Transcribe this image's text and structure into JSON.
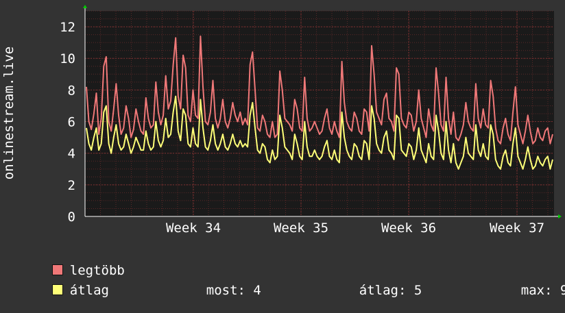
{
  "chart_data": {
    "type": "line",
    "ylabel": "onlinestream.live",
    "ylim": [
      0,
      13
    ],
    "y_ticks": [
      "0",
      "2",
      "4",
      "6",
      "8",
      "10",
      "12"
    ],
    "x_ticks": [
      "Week 34",
      "Week 35",
      "Week 36",
      "Week 37"
    ],
    "grid": true,
    "colors": {
      "background": "#333333",
      "plot": "#1a1a1a",
      "grid": "#5a2828",
      "max": "#f07878",
      "avg": "#ffff78"
    },
    "series": [
      {
        "name": "legtöbb",
        "color": "#f07878",
        "values": [
          8.2,
          6.0,
          5.5,
          6.5,
          7.8,
          5.2,
          6.2,
          9.5,
          10.1,
          6.0,
          5.4,
          6.8,
          8.4,
          6.4,
          5.2,
          5.6,
          7.0,
          6.2,
          5.0,
          5.5,
          6.8,
          6.0,
          5.4,
          5.2,
          7.5,
          6.2,
          5.6,
          5.8,
          8.5,
          6.6,
          5.8,
          6.4,
          8.9,
          6.8,
          7.3,
          9.6,
          11.3,
          7.6,
          6.8,
          10.2,
          9.4,
          6.4,
          6.0,
          8.0,
          6.4,
          6.2,
          11.4,
          8.2,
          6.0,
          5.8,
          6.6,
          8.6,
          6.2,
          5.6,
          6.2,
          7.4,
          6.0,
          5.6,
          6.2,
          7.2,
          6.4,
          6.0,
          6.6,
          5.8,
          6.2,
          5.8,
          9.6,
          10.4,
          8.0,
          5.6,
          5.4,
          6.4,
          6.0,
          5.2,
          5.0,
          6.0,
          5.0,
          5.2,
          9.2,
          8.0,
          6.2,
          6.0,
          5.8,
          5.4,
          7.4,
          6.8,
          5.6,
          5.4,
          8.8,
          6.2,
          5.4,
          5.6,
          6.0,
          5.6,
          5.2,
          5.4,
          6.2,
          6.8,
          5.6,
          5.2,
          6.0,
          5.4,
          5.0,
          9.8,
          7.2,
          6.0,
          5.6,
          5.4,
          6.6,
          6.2,
          5.4,
          5.2,
          6.8,
          6.6,
          5.4,
          10.8,
          9.0,
          6.6,
          6.2,
          5.8,
          7.4,
          7.8,
          6.2,
          6.0,
          5.4,
          9.4,
          9.0,
          6.2,
          5.8,
          5.6,
          6.6,
          6.4,
          5.4,
          6.0,
          8.0,
          6.2,
          5.6,
          5.0,
          6.8,
          5.8,
          5.4,
          9.4,
          7.8,
          5.8,
          5.4,
          8.8,
          6.2,
          5.2,
          6.6,
          5.0,
          4.8,
          5.2,
          5.8,
          7.2,
          6.0,
          5.6,
          5.4,
          8.4,
          6.2,
          5.6,
          6.8,
          5.8,
          5.6,
          8.6,
          7.6,
          5.6,
          4.8,
          4.6,
          5.6,
          6.2,
          5.2,
          4.8,
          6.6,
          8.2,
          5.8,
          5.2,
          4.6,
          5.4,
          6.4,
          5.4,
          4.6,
          4.8,
          5.6,
          5.0,
          4.8,
          5.4,
          5.6,
          4.6,
          5.2
        ],
        "note": "sampled approx. every ~4 px across weeks 33–37"
      },
      {
        "name": "átlag",
        "color": "#ffff78",
        "values": [
          5.6,
          4.6,
          4.2,
          5.0,
          5.6,
          4.2,
          4.6,
          6.6,
          7.0,
          4.6,
          4.0,
          5.0,
          5.8,
          4.6,
          4.2,
          4.4,
          5.2,
          4.6,
          4.0,
          4.4,
          5.0,
          4.6,
          4.2,
          4.2,
          5.4,
          4.6,
          4.2,
          4.4,
          6.0,
          4.8,
          4.4,
          4.8,
          6.2,
          5.0,
          5.2,
          6.6,
          7.6,
          5.4,
          4.8,
          6.8,
          6.4,
          4.6,
          4.4,
          5.6,
          4.6,
          4.4,
          7.4,
          5.6,
          4.4,
          4.2,
          4.8,
          5.8,
          4.6,
          4.2,
          4.6,
          5.2,
          4.4,
          4.2,
          4.6,
          5.2,
          4.6,
          4.4,
          4.8,
          4.4,
          4.6,
          4.4,
          6.4,
          7.2,
          5.6,
          4.2,
          4.0,
          4.6,
          4.4,
          3.6,
          3.4,
          4.2,
          3.6,
          3.8,
          6.4,
          5.6,
          4.4,
          4.2,
          4.0,
          3.6,
          5.2,
          4.6,
          3.8,
          3.6,
          6.0,
          4.4,
          3.8,
          3.8,
          4.2,
          3.8,
          3.6,
          3.8,
          4.4,
          4.8,
          3.8,
          3.6,
          4.2,
          3.6,
          3.4,
          6.6,
          5.0,
          4.2,
          3.8,
          3.6,
          4.6,
          4.4,
          3.8,
          3.6,
          4.8,
          4.6,
          3.6,
          7.0,
          6.2,
          4.6,
          4.2,
          4.0,
          5.0,
          5.4,
          4.2,
          4.0,
          3.6,
          6.4,
          6.2,
          4.2,
          4.0,
          3.8,
          4.6,
          4.4,
          3.6,
          4.2,
          5.6,
          4.2,
          3.8,
          3.4,
          4.6,
          3.8,
          3.6,
          6.4,
          5.4,
          4.0,
          3.6,
          6.0,
          4.2,
          3.4,
          4.6,
          3.4,
          3.0,
          3.4,
          3.8,
          5.0,
          4.0,
          3.8,
          3.6,
          5.8,
          4.2,
          3.8,
          4.6,
          3.8,
          3.6,
          5.8,
          5.2,
          3.6,
          3.2,
          3.0,
          3.8,
          4.2,
          3.4,
          3.2,
          4.6,
          5.6,
          3.8,
          3.4,
          3.0,
          3.6,
          4.4,
          3.6,
          3.0,
          3.2,
          3.8,
          3.4,
          3.2,
          3.6,
          3.8,
          3.0,
          3.6
        ]
      }
    ]
  },
  "legend": [
    {
      "label": "legtöbb",
      "color": "#f07878"
    },
    {
      "label": "átlag",
      "color": "#ffff78"
    }
  ],
  "stats": {
    "now_label": "most:",
    "now_value": "4",
    "avg_label": "átlag:",
    "avg_value": "5",
    "max_label": "max:",
    "max_value": "9"
  }
}
